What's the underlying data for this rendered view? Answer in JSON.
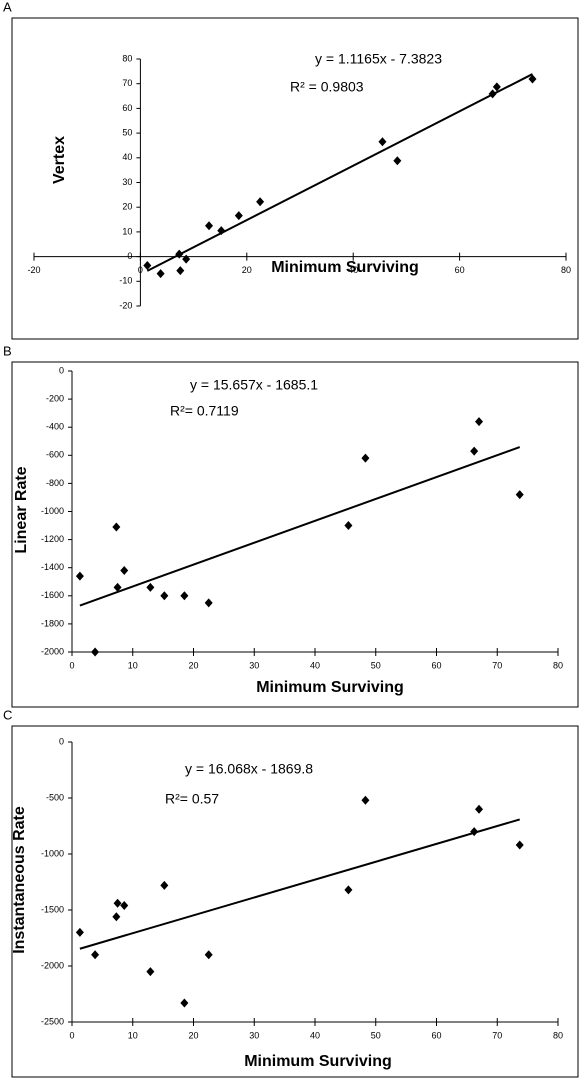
{
  "chart_data": [
    {
      "type": "scatter",
      "panel": "A",
      "x_label": "Minimum Surviving",
      "y_label": "Vertex",
      "equation": "y = 1.1165x - 7.3823",
      "r_squared": "R² = 0.9803",
      "x": [
        1.3,
        3.8,
        7.3,
        7.5,
        8.6,
        12.9,
        15.2,
        18.5,
        22.5,
        45.5,
        48.3,
        66.2,
        67,
        73.7
      ],
      "values": [
        -3.6,
        -6.9,
        1,
        -5.7,
        -1,
        12.5,
        10.5,
        16.6,
        22.2,
        46.5,
        38.8,
        65.9,
        68.7,
        71.9
      ],
      "color": "#000000",
      "trendline": true,
      "axes": "zero",
      "xlim": [
        -20,
        80
      ],
      "xticks": [
        -20,
        0,
        20,
        40,
        60,
        80
      ],
      "ylim": [
        -20,
        80
      ],
      "yticks": [
        -20,
        -10,
        0,
        10,
        20,
        30,
        40,
        50,
        60,
        70,
        80
      ]
    },
    {
      "type": "scatter",
      "panel": "B",
      "x_label": "Minimum Surviving",
      "y_label": "Linear Rate",
      "equation": "y = 15.657x - 1685.1",
      "r_squared": "R²= 0.7119",
      "x": [
        1.3,
        3.8,
        7.3,
        7.5,
        8.6,
        12.9,
        15.2,
        18.5,
        22.5,
        45.5,
        48.3,
        66.2,
        67,
        73.7
      ],
      "values": [
        -1460,
        -2000,
        -1110,
        -1540,
        -1420,
        -1540,
        -1600,
        -1600,
        -1650,
        -1100,
        -620,
        -570,
        -360,
        -880
      ],
      "color": "#000000",
      "trendline": true,
      "axes": "bottom",
      "xlim": [
        0,
        80
      ],
      "xticks": [
        0,
        10,
        20,
        30,
        40,
        50,
        60,
        70,
        80
      ],
      "ylim": [
        -2000,
        0
      ],
      "yticks": [
        -2000,
        -1800,
        -1600,
        -1400,
        -1200,
        -1000,
        -800,
        -600,
        -400,
        -200,
        0
      ]
    },
    {
      "type": "scatter",
      "panel": "C",
      "x_label": "Minimum Surviving",
      "y_label": "Instantaneous Rate",
      "equation": "y = 16.068x - 1869.8",
      "r_squared": "R²= 0.57",
      "x": [
        1.3,
        3.8,
        7.3,
        7.5,
        8.6,
        12.9,
        15.2,
        18.5,
        22.5,
        45.5,
        48.3,
        66.2,
        67,
        73.7
      ],
      "values": [
        -1700,
        -1900,
        -1560,
        -1440,
        -1460,
        -2050,
        -1280,
        -2330,
        -1900,
        -1320,
        -520,
        -800,
        -600,
        -920
      ],
      "color": "#000000",
      "trendline": true,
      "axes": "bottom",
      "xlim": [
        0,
        80
      ],
      "xticks": [
        0,
        10,
        20,
        30,
        40,
        50,
        60,
        70,
        80
      ],
      "ylim": [
        -2500,
        0
      ],
      "yticks": [
        -2500,
        -2000,
        -1500,
        -1000,
        -500,
        0
      ]
    }
  ]
}
